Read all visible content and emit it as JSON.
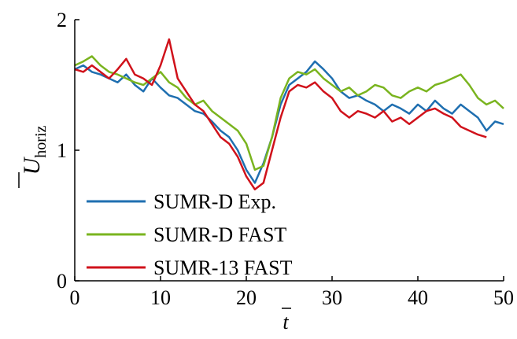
{
  "chart_data": {
    "type": "line",
    "xlabel": "t",
    "ylabel": "U",
    "ylabel_sub": "horiz",
    "x": [
      0,
      1,
      2,
      3,
      4,
      5,
      6,
      7,
      8,
      9,
      10,
      11,
      12,
      13,
      14,
      15,
      16,
      17,
      18,
      19,
      20,
      21,
      22,
      23,
      24,
      25,
      26,
      27,
      28,
      29,
      30,
      31,
      32,
      33,
      34,
      35,
      36,
      37,
      38,
      39,
      40,
      41,
      42,
      43,
      44,
      45,
      46,
      47,
      48,
      49,
      50
    ],
    "series": [
      {
        "name": "SUMR-D Exp.",
        "color": "#1f6fb0",
        "values": [
          1.62,
          1.65,
          1.6,
          1.58,
          1.55,
          1.52,
          1.58,
          1.5,
          1.45,
          1.55,
          1.48,
          1.42,
          1.4,
          1.35,
          1.3,
          1.28,
          1.22,
          1.15,
          1.1,
          1.0,
          0.85,
          0.75,
          0.9,
          1.1,
          1.35,
          1.5,
          1.55,
          1.6,
          1.68,
          1.62,
          1.55,
          1.45,
          1.4,
          1.42,
          1.38,
          1.35,
          1.3,
          1.35,
          1.32,
          1.28,
          1.35,
          1.3,
          1.38,
          1.32,
          1.28,
          1.35,
          1.3,
          1.25,
          1.15,
          1.22,
          1.2
        ]
      },
      {
        "name": "SUMR-D FAST",
        "color": "#7ab41f",
        "values": [
          1.65,
          1.68,
          1.72,
          1.65,
          1.6,
          1.58,
          1.55,
          1.52,
          1.5,
          1.55,
          1.6,
          1.52,
          1.48,
          1.4,
          1.35,
          1.38,
          1.3,
          1.25,
          1.2,
          1.15,
          1.05,
          0.85,
          0.88,
          1.1,
          1.4,
          1.55,
          1.6,
          1.58,
          1.62,
          1.55,
          1.5,
          1.45,
          1.48,
          1.42,
          1.45,
          1.5,
          1.48,
          1.42,
          1.4,
          1.45,
          1.48,
          1.45,
          1.5,
          1.52,
          1.55,
          1.58,
          1.5,
          1.4,
          1.35,
          1.38,
          1.32
        ]
      },
      {
        "name": "SUMR-13 FAST",
        "color": "#d0121b",
        "values": [
          1.62,
          1.6,
          1.65,
          1.6,
          1.55,
          1.62,
          1.7,
          1.58,
          1.55,
          1.5,
          1.65,
          1.85,
          1.55,
          1.45,
          1.35,
          1.3,
          1.2,
          1.1,
          1.05,
          0.95,
          0.8,
          0.7,
          0.75,
          1.0,
          1.25,
          1.45,
          1.5,
          1.48,
          1.52,
          1.45,
          1.4,
          1.3,
          1.25,
          1.3,
          1.28,
          1.25,
          1.3,
          1.22,
          1.25,
          1.2,
          1.25,
          1.3,
          1.32,
          1.28,
          1.25,
          1.18,
          1.15,
          1.12,
          1.1,
          null,
          null
        ]
      }
    ],
    "xlim": [
      0,
      50
    ],
    "xticks": [
      0,
      10,
      20,
      30,
      40,
      50
    ],
    "ylim": [
      0,
      2
    ],
    "yticks": [
      0,
      1,
      2
    ]
  }
}
